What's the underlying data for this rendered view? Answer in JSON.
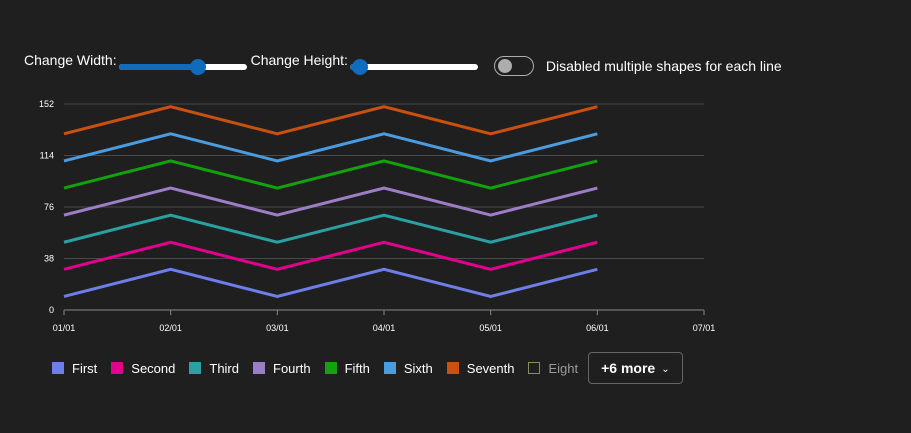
{
  "controls": {
    "width_label": "Change Width:",
    "width_value": 0.62,
    "height_label": "Change Height:",
    "height_value": 0.08,
    "toggle_label": "Disabled multiple shapes for each line",
    "toggle_on": false,
    "accent_color": "#0f6cbd"
  },
  "legend": {
    "more_label": "+6 more",
    "chevron_icon": "chevron-down-icon"
  },
  "chart_data": {
    "type": "line",
    "x": [
      "01/01",
      "02/01",
      "03/01",
      "04/01",
      "05/01",
      "06/01"
    ],
    "x_ticks": [
      "01/01",
      "02/01",
      "03/01",
      "04/01",
      "05/01",
      "06/01",
      "07/01"
    ],
    "y_ticks": [
      "152",
      "114",
      "76",
      "38",
      "0"
    ],
    "ylim": [
      0,
      152
    ],
    "grid": true,
    "legend_position": "bottom-left",
    "series": [
      {
        "name": "First",
        "color": "#6e7ee8",
        "values": [
          10,
          30,
          10,
          30,
          10,
          30
        ]
      },
      {
        "name": "Second",
        "color": "#e3008c",
        "values": [
          30,
          50,
          30,
          50,
          30,
          50
        ]
      },
      {
        "name": "Third",
        "color": "#2aa0a4",
        "values": [
          50,
          70,
          50,
          70,
          50,
          70
        ]
      },
      {
        "name": "Fourth",
        "color": "#9c7ec7",
        "values": [
          70,
          90,
          70,
          90,
          70,
          90
        ]
      },
      {
        "name": "Fifth",
        "color": "#13a10e",
        "values": [
          90,
          110,
          90,
          110,
          90,
          110
        ]
      },
      {
        "name": "Sixth",
        "color": "#4a9bdf",
        "values": [
          110,
          130,
          110,
          130,
          110,
          130
        ]
      },
      {
        "name": "Seventh",
        "color": "#ca5010",
        "values": [
          130,
          150,
          130,
          150,
          130,
          150
        ]
      }
    ],
    "extra_legend": [
      {
        "name": "Eight",
        "color": "#8a8f52"
      }
    ]
  }
}
